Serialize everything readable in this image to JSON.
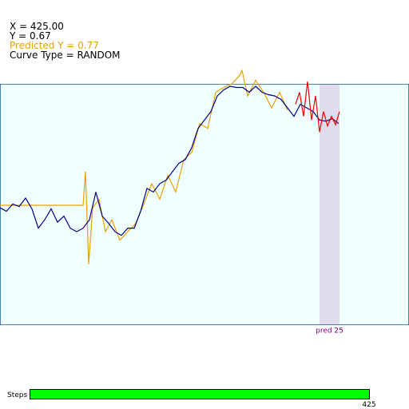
{
  "info": {
    "x_text": "X = 425.00",
    "y_text": "Y = 0.67",
    "predicted_text": "Predicted Y = 0.77",
    "curve_text": "Curve Type = RANDOM"
  },
  "plot": {
    "xlim": [
      0,
      512
    ],
    "ylim": [
      -1,
      1
    ],
    "forecast_band": [
      400,
      425
    ],
    "forecast_label": "pred 25",
    "actual": {
      "color": "#00008b",
      "x": [
        0,
        8,
        16,
        24,
        32,
        40,
        48,
        56,
        64,
        72,
        80,
        88,
        96,
        104,
        112,
        120,
        128,
        136,
        144,
        152,
        160,
        168,
        176,
        184,
        192,
        200,
        208,
        216,
        224,
        232,
        240,
        248,
        256,
        264,
        272,
        280,
        288,
        296,
        304,
        312,
        320,
        328,
        336,
        344,
        352,
        360,
        368,
        376,
        384,
        392,
        400,
        408,
        416,
        424
      ],
      "values": [
        -0.03,
        -0.06,
        0.0,
        -0.02,
        0.05,
        -0.04,
        -0.2,
        -0.13,
        -0.04,
        -0.15,
        -0.1,
        -0.2,
        -0.23,
        -0.2,
        -0.13,
        0.1,
        -0.1,
        -0.16,
        -0.23,
        -0.26,
        -0.2,
        -0.2,
        -0.06,
        0.13,
        0.1,
        0.17,
        0.2,
        0.27,
        0.34,
        0.37,
        0.47,
        0.63,
        0.7,
        0.77,
        0.9,
        0.95,
        0.98,
        0.97,
        0.97,
        0.93,
        0.98,
        0.93,
        0.91,
        0.9,
        0.87,
        0.8,
        0.73,
        0.83,
        0.8,
        0.77,
        0.7,
        0.69,
        0.71,
        0.67
      ]
    },
    "predicted": {
      "color": "#e8a000",
      "x": [
        0,
        104,
        107,
        111,
        116,
        124,
        132,
        140,
        150,
        160,
        170,
        180,
        190,
        200,
        210,
        220,
        230,
        240,
        250,
        260,
        270,
        280,
        290,
        300,
        303,
        310,
        320,
        330,
        340,
        350,
        360
      ],
      "values": [
        -0.01,
        -0.01,
        0.27,
        -0.5,
        -0.03,
        0.04,
        -0.23,
        -0.13,
        -0.3,
        -0.23,
        -0.16,
        0.0,
        0.17,
        0.04,
        0.24,
        0.1,
        0.37,
        0.43,
        0.67,
        0.63,
        0.93,
        0.97,
        1.0,
        1.07,
        1.11,
        0.9,
        1.03,
        0.93,
        0.8,
        0.93,
        0.78
      ]
    },
    "forecast": {
      "color": "#ee0000",
      "x": [
        370,
        375,
        380,
        385,
        390,
        395,
        400,
        405,
        410,
        415,
        420,
        425
      ],
      "values": [
        0.83,
        0.93,
        0.73,
        1.02,
        0.7,
        0.9,
        0.6,
        0.77,
        0.65,
        0.73,
        0.66,
        0.77
      ]
    }
  },
  "steps": {
    "label": "Steps",
    "count": "425"
  }
}
